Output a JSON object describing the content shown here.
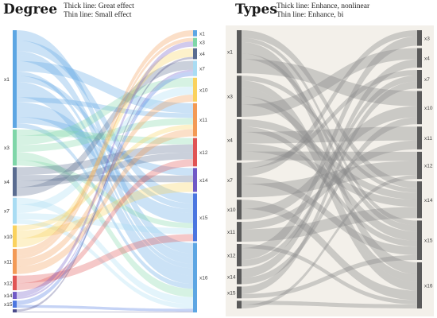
{
  "panels": [
    {
      "key": "degree",
      "title": "Degree",
      "notes": [
        "Thick line: Great effect",
        "Thin line: Small effect"
      ],
      "background": "#ffffff",
      "mode": "color",
      "left_nodes": [
        {
          "label": "x1",
          "color": "#5da6e3",
          "weight": 0.314
        },
        {
          "label": "x3",
          "color": "#7fd6a8",
          "weight": 0.116
        },
        {
          "label": "x4",
          "color": "#5a6c90",
          "weight": 0.093
        },
        {
          "label": "x7",
          "color": "#a9dcf3",
          "weight": 0.084
        },
        {
          "label": "x10",
          "color": "#fad25e",
          "weight": 0.07
        },
        {
          "label": "x11",
          "color": "#f39a55",
          "weight": 0.081
        },
        {
          "label": "x12",
          "color": "#e05454",
          "weight": 0.047
        },
        {
          "label": "x14",
          "color": "#7059c6",
          "weight": 0.023
        },
        {
          "label": "x15",
          "color": "#4b76e0",
          "weight": 0.023
        },
        {
          "label": "",
          "color": "#4a4a8a",
          "weight": 0.01
        }
      ],
      "right_nodes": [
        {
          "label": "x1",
          "color": "#5da6e3",
          "weight": 0.023
        },
        {
          "label": "x3",
          "color": "#7fd6a8",
          "weight": 0.033
        },
        {
          "label": "x4",
          "color": "#5a6c90",
          "weight": 0.041
        },
        {
          "label": "x7",
          "color": "#a9dcf3",
          "weight": 0.058
        },
        {
          "label": "x10",
          "color": "#fad25e",
          "weight": 0.09
        },
        {
          "label": "x11",
          "color": "#f39a55",
          "weight": 0.125
        },
        {
          "label": "x12",
          "color": "#e05454",
          "weight": 0.107
        },
        {
          "label": "x14",
          "color": "#7059c6",
          "weight": 0.09
        },
        {
          "label": "x15",
          "color": "#4b76e0",
          "weight": 0.18
        },
        {
          "label": "x16",
          "color": "#5da6e3",
          "weight": 0.262
        }
      ]
    },
    {
      "key": "types",
      "title": "Types",
      "notes": [
        "Thick line: Enhance, nonlinear",
        "Thin line: Enhance, bi"
      ],
      "background": "#f3f0ea",
      "mode": "gray",
      "left_nodes": [
        {
          "label": "x1",
          "color": "#5a5a5a",
          "weight": 0.168
        },
        {
          "label": "x3",
          "color": "#5a5a5a",
          "weight": 0.16
        },
        {
          "label": "x4",
          "color": "#5a5a5a",
          "weight": 0.16
        },
        {
          "label": "x7",
          "color": "#5a5a5a",
          "weight": 0.135
        },
        {
          "label": "x10",
          "color": "#5a5a5a",
          "weight": 0.077
        },
        {
          "label": "x11",
          "color": "#5a5a5a",
          "weight": 0.077
        },
        {
          "label": "x12",
          "color": "#5a5a5a",
          "weight": 0.087
        },
        {
          "label": "x14",
          "color": "#5a5a5a",
          "weight": 0.06
        },
        {
          "label": "x15",
          "color": "#5a5a5a",
          "weight": 0.046
        },
        {
          "label": "",
          "color": "#5a5a5a",
          "weight": 0.03
        }
      ],
      "right_nodes": [
        {
          "label": "x3",
          "color": "#5a5a5a",
          "weight": 0.06
        },
        {
          "label": "x4",
          "color": "#5a5a5a",
          "weight": 0.075
        },
        {
          "label": "x7",
          "color": "#5a5a5a",
          "weight": 0.072
        },
        {
          "label": "x10",
          "color": "#5a5a5a",
          "weight": 0.128
        },
        {
          "label": "x11",
          "color": "#5a5a5a",
          "weight": 0.088
        },
        {
          "label": "x12",
          "color": "#5a5a5a",
          "weight": 0.105
        },
        {
          "label": "x14",
          "color": "#5a5a5a",
          "weight": 0.142
        },
        {
          "label": "x15",
          "color": "#5a5a5a",
          "weight": 0.152
        },
        {
          "label": "x16",
          "color": "#5a5a5a",
          "weight": 0.178
        }
      ]
    }
  ]
}
